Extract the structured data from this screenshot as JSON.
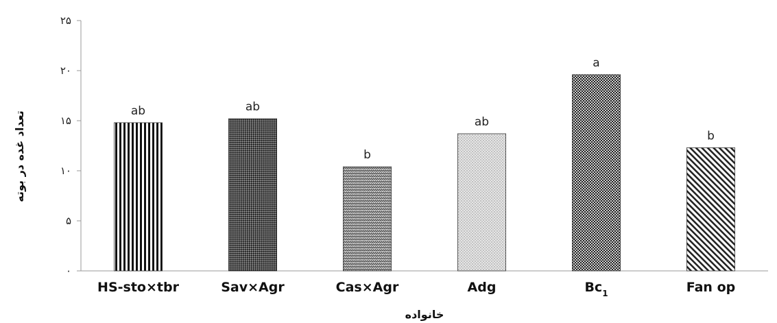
{
  "chart_data": {
    "type": "bar",
    "xlabel": "خانواده",
    "ylabel": "تعداد غده در بوته",
    "ylim": [
      0,
      25
    ],
    "yticks": [
      0,
      5,
      10,
      15,
      20,
      25
    ],
    "ytick_labels": [
      "۰",
      "۵",
      "۱۰",
      "۱۵",
      "۲۰",
      "۲۵"
    ],
    "grid": false,
    "legend": "none",
    "categories": [
      "HS-sto×tbr",
      "Sav×Agr",
      "Cas×Agr",
      "Adg",
      "Bc",
      "Fan op"
    ],
    "category_subscripts": [
      "",
      "",
      "",
      "",
      "1",
      ""
    ],
    "values": [
      14.8,
      15.2,
      10.4,
      13.7,
      19.6,
      12.3
    ],
    "significance_letters": [
      "ab",
      "ab",
      "b",
      "ab",
      "a",
      "b"
    ],
    "patterns": [
      "vertical-stripes",
      "dark-dots",
      "wave-dots",
      "light-dots",
      "checker",
      "diagonal-stripes"
    ]
  }
}
